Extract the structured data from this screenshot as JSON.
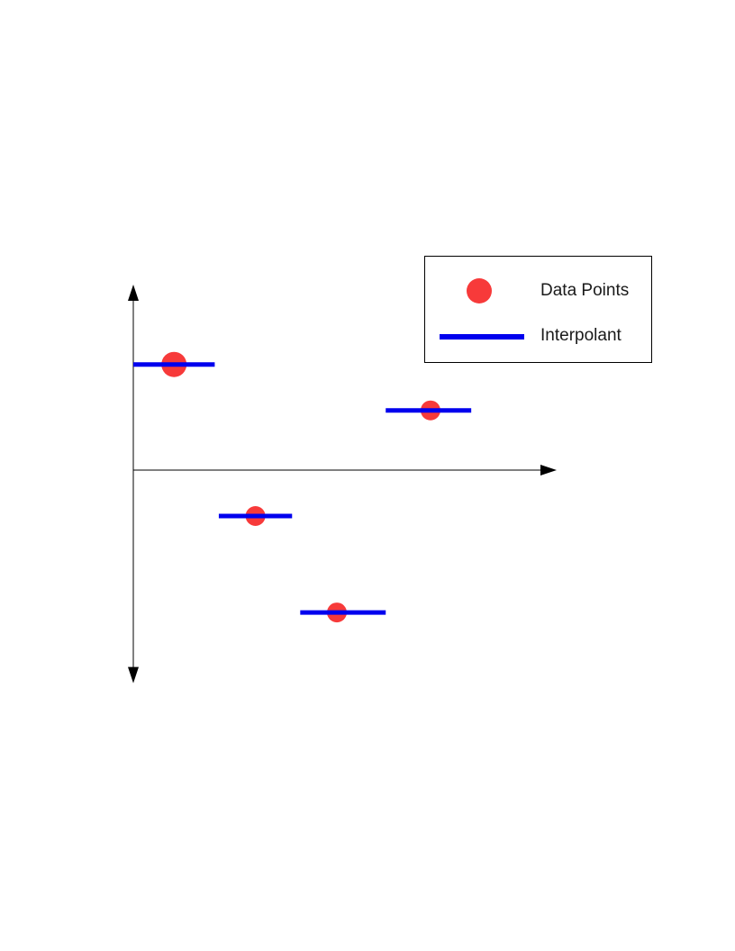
{
  "chart_data": {
    "type": "scatter",
    "title": "",
    "xlabel": "",
    "ylabel": "",
    "xlim": [
      0,
      10
    ],
    "ylim": [
      -4.6,
      4.0
    ],
    "grid": false,
    "legend_position": "top-right",
    "series": [
      {
        "name": "Data Points",
        "kind": "points",
        "color": "#f73a3a",
        "x": [
          1,
          3,
          5,
          7.3
        ],
        "y": [
          2.3,
          -1.0,
          -3.1,
          1.3
        ]
      },
      {
        "name": "Interpolant",
        "kind": "piecewise-constant",
        "color": "#0000ee",
        "segments": [
          {
            "x": [
              0.0,
              2.0
            ],
            "y": 2.3
          },
          {
            "x": [
              2.1,
              3.9
            ],
            "y": -1.0
          },
          {
            "x": [
              4.1,
              6.2
            ],
            "y": -3.1
          },
          {
            "x": [
              6.2,
              8.3
            ],
            "y": 1.3
          }
        ]
      }
    ]
  },
  "legend": {
    "items": [
      {
        "label": "Data Points",
        "marker": "dot"
      },
      {
        "label": "Interpolant",
        "marker": "line"
      }
    ]
  }
}
